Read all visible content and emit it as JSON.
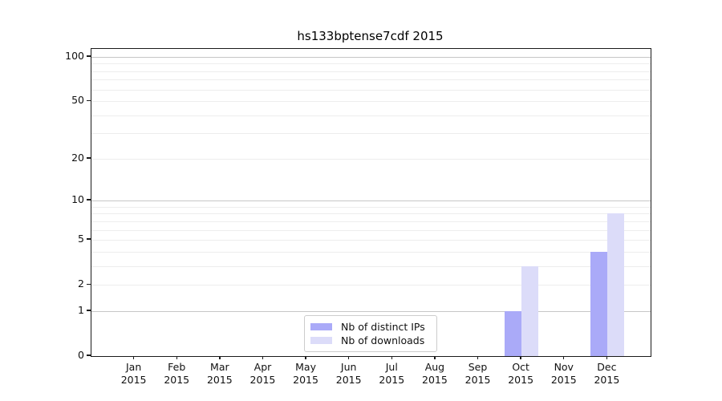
{
  "chart_data": {
    "type": "bar",
    "title": "hs133bptense7cdf 2015",
    "categories": [
      "Jan",
      "Feb",
      "Mar",
      "Apr",
      "May",
      "Jun",
      "Jul",
      "Aug",
      "Sep",
      "Oct",
      "Nov",
      "Dec"
    ],
    "x_tick_year": "2015",
    "series": [
      {
        "name": "Nb of distinct IPs",
        "color": "#aaaaf8",
        "values": [
          0,
          0,
          0,
          0,
          0,
          0,
          0,
          0,
          0,
          1,
          0,
          4
        ]
      },
      {
        "name": "Nb of downloads",
        "color": "#dcdcf9",
        "values": [
          0,
          0,
          0,
          0,
          0,
          0,
          0,
          0,
          0,
          3,
          0,
          8
        ]
      }
    ],
    "y_scale": "log10(1+x)",
    "y_axis_ticks": [
      "0",
      "1",
      "2",
      "5",
      "10",
      "20",
      "50",
      "100"
    ],
    "y_tick_values": [
      0,
      1,
      2,
      5,
      10,
      20,
      50,
      100
    ],
    "y_major_gridline_values": [
      1,
      10,
      100
    ],
    "y_minor_gridline_values": [
      2,
      3,
      4,
      5,
      6,
      7,
      8,
      9,
      20,
      30,
      40,
      50,
      60,
      70,
      80,
      90
    ],
    "ylim": [
      0,
      113
    ],
    "grid": "on",
    "legend_position": "lower center",
    "colors": {
      "bar_distinct_ips": "#aaaaf8",
      "bar_downloads": "#dcdcf9",
      "major_grid": "#c6c6c6",
      "minor_grid": "#ededed",
      "axis": "#1a1a1a",
      "text": "#111111"
    }
  }
}
